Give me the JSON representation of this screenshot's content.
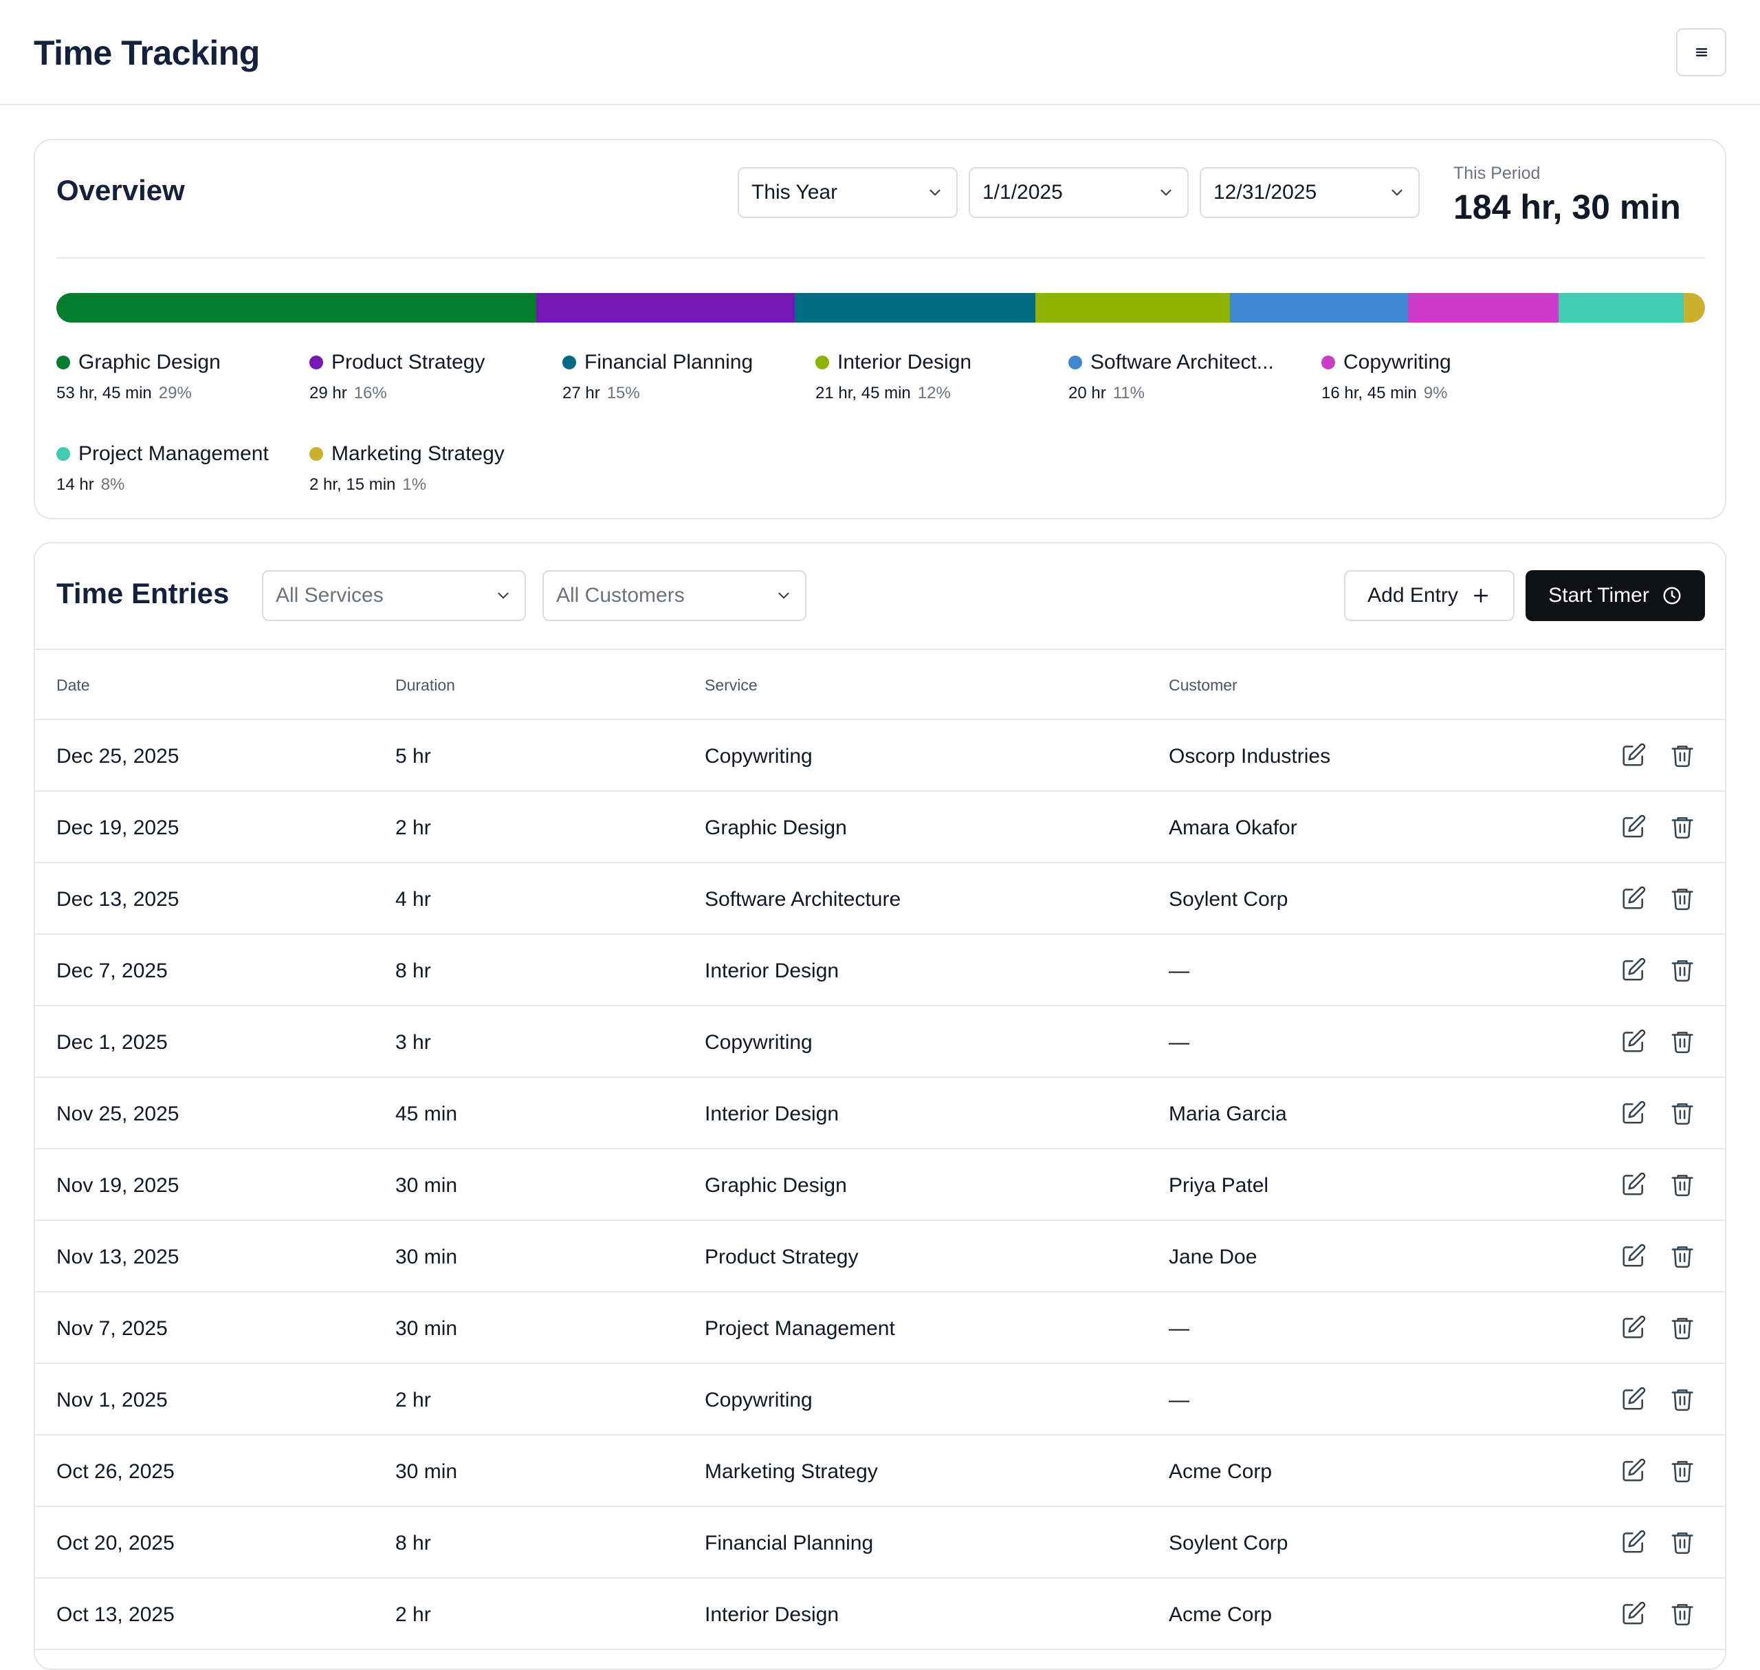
{
  "app": {
    "title": "Time Tracking"
  },
  "overview": {
    "title": "Overview",
    "range_select": "This Year",
    "start_date": "1/1/2025",
    "end_date": "12/31/2025",
    "period_label": "This Period",
    "period_total": "184 hr, 30 min",
    "breakdown": [
      {
        "name": "Graphic Design",
        "duration": "53 hr, 45 min",
        "percent": "29%",
        "share": 29.1,
        "color": "#047e2c"
      },
      {
        "name": "Product Strategy",
        "duration": "29 hr",
        "percent": "16%",
        "share": 15.7,
        "color": "#7318b5"
      },
      {
        "name": "Financial Planning",
        "duration": "27 hr",
        "percent": "15%",
        "share": 14.6,
        "color": "#006c84"
      },
      {
        "name": "Interior Design",
        "duration": "21 hr, 45 min",
        "percent": "12%",
        "share": 11.8,
        "color": "#8db300"
      },
      {
        "name": "Software Architect...",
        "duration": "20 hr",
        "percent": "11%",
        "share": 10.8,
        "color": "#3d88cf"
      },
      {
        "name": "Copywriting",
        "duration": "16 hr, 45 min",
        "percent": "9%",
        "share": 9.1,
        "color": "#cc3cc9"
      },
      {
        "name": "Project Management",
        "duration": "14 hr",
        "percent": "8%",
        "share": 7.6,
        "color": "#40ccb0"
      },
      {
        "name": "Marketing Strategy",
        "duration": "2 hr, 15 min",
        "percent": "1%",
        "share": 1.2,
        "color": "#ccb02d"
      }
    ]
  },
  "entries": {
    "title": "Time Entries",
    "service_filter": "All Services",
    "customer_filter": "All Customers",
    "add_entry_label": "Add Entry",
    "start_timer_label": "Start Timer",
    "columns": {
      "date": "Date",
      "duration": "Duration",
      "service": "Service",
      "customer": "Customer"
    },
    "rows": [
      {
        "date": "Dec 25, 2025",
        "duration": "5 hr",
        "service": "Copywriting",
        "customer": "Oscorp Industries"
      },
      {
        "date": "Dec 19, 2025",
        "duration": "2 hr",
        "service": "Graphic Design",
        "customer": "Amara Okafor"
      },
      {
        "date": "Dec 13, 2025",
        "duration": "4 hr",
        "service": "Software Architecture",
        "customer": "Soylent Corp"
      },
      {
        "date": "Dec 7, 2025",
        "duration": "8 hr",
        "service": "Interior Design",
        "customer": "—"
      },
      {
        "date": "Dec 1, 2025",
        "duration": "3 hr",
        "service": "Copywriting",
        "customer": "—"
      },
      {
        "date": "Nov 25, 2025",
        "duration": "45 min",
        "service": "Interior Design",
        "customer": "Maria Garcia"
      },
      {
        "date": "Nov 19, 2025",
        "duration": "30 min",
        "service": "Graphic Design",
        "customer": "Priya Patel"
      },
      {
        "date": "Nov 13, 2025",
        "duration": "30 min",
        "service": "Product Strategy",
        "customer": "Jane Doe"
      },
      {
        "date": "Nov 7, 2025",
        "duration": "30 min",
        "service": "Project Management",
        "customer": "—"
      },
      {
        "date": "Nov 1, 2025",
        "duration": "2 hr",
        "service": "Copywriting",
        "customer": "—"
      },
      {
        "date": "Oct 26, 2025",
        "duration": "30 min",
        "service": "Marketing Strategy",
        "customer": "Acme Corp"
      },
      {
        "date": "Oct 20, 2025",
        "duration": "8 hr",
        "service": "Financial Planning",
        "customer": "Soylent Corp"
      },
      {
        "date": "Oct 13, 2025",
        "duration": "2 hr",
        "service": "Interior Design",
        "customer": "Acme Corp"
      }
    ]
  }
}
